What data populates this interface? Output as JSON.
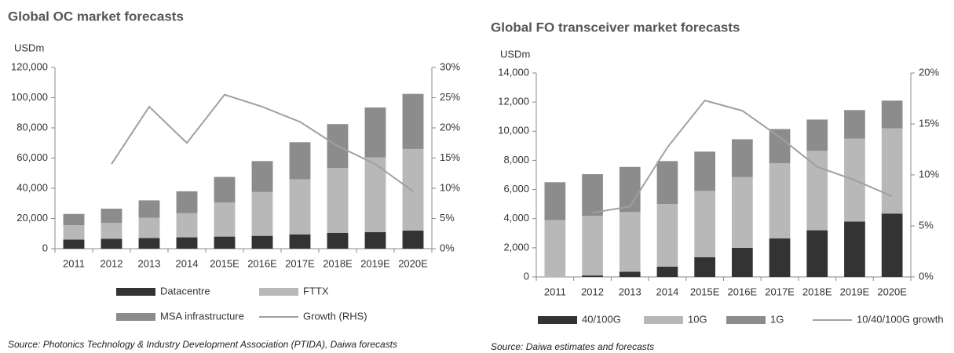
{
  "chart_data": [
    {
      "type": "bar",
      "stacked": true,
      "title": "Global OC market forecasts",
      "y_label": "USDm",
      "source": "Source: Photonics Technology & Industry Development Association (PTIDA), Daiwa forecasts",
      "categories": [
        "2011",
        "2012",
        "2013",
        "2014",
        "2015E",
        "2016E",
        "2017E",
        "2018E",
        "2019E",
        "2020E"
      ],
      "series": [
        {
          "name": "Datacentre",
          "color": "#333333",
          "values": [
            6000,
            6500,
            7000,
            7500,
            8000,
            8500,
            9500,
            10500,
            11000,
            12000
          ]
        },
        {
          "name": "FTTX",
          "color": "#b8b8b8",
          "values": [
            9500,
            10500,
            13500,
            16000,
            22500,
            29000,
            36500,
            43000,
            49500,
            54000
          ]
        },
        {
          "name": "MSA infrastructure",
          "color": "#8c8c8c",
          "values": [
            7500,
            9500,
            11500,
            14500,
            17000,
            20500,
            24500,
            29000,
            33000,
            36500
          ]
        },
        {
          "name": "Growth (RHS)",
          "type": "line",
          "axis": "y2",
          "color": "#a0a0a0",
          "values": [
            null,
            14,
            23.5,
            17.5,
            25.5,
            23.5,
            21,
            17,
            14,
            9.5
          ]
        }
      ],
      "ylim": [
        0,
        120000
      ],
      "yticks": [
        0,
        {
          "value": 20000,
          "label": "20,000"
        },
        {
          "value": 40000,
          "label": "40,000"
        },
        {
          "value": 60000,
          "label": "60,000"
        },
        {
          "value": 80000,
          "label": "80,000"
        },
        {
          "value": 100000,
          "label": "100,000"
        },
        {
          "value": 120000,
          "label": "120,000"
        }
      ],
      "y2lim": [
        0,
        30
      ],
      "y2ticks": [
        {
          "value": 0,
          "label": "0%"
        },
        {
          "value": 5,
          "label": "5%"
        },
        {
          "value": 10,
          "label": "10%"
        },
        {
          "value": 15,
          "label": "15%"
        },
        {
          "value": 20,
          "label": "20%"
        },
        {
          "value": 25,
          "label": "25%"
        },
        {
          "value": 30,
          "label": "30%"
        }
      ],
      "grid": false
    },
    {
      "type": "bar",
      "stacked": true,
      "title": "Global FO transceiver market forecasts",
      "y_label": "USDm",
      "source": "Source: Daiwa estimates and forecasts",
      "categories": [
        "2011",
        "2012",
        "2013",
        "2014",
        "2015E",
        "2016E",
        "2017E",
        "2018E",
        "2019E",
        "2020E"
      ],
      "series": [
        {
          "name": "40/100G",
          "color": "#333333",
          "values": [
            0,
            100,
            350,
            700,
            1350,
            2000,
            2650,
            3200,
            3800,
            4350
          ]
        },
        {
          "name": "10G",
          "color": "#b8b8b8",
          "values": [
            3900,
            4100,
            4100,
            4300,
            4550,
            4850,
            5150,
            5450,
            5700,
            5850
          ]
        },
        {
          "name": "1G",
          "color": "#8c8c8c",
          "values": [
            2600,
            2850,
            3100,
            2950,
            2700,
            2600,
            2350,
            2150,
            1950,
            1900
          ]
        },
        {
          "name": "10/40/100G growth",
          "type": "line",
          "axis": "y2",
          "color": "#a0a0a0",
          "values": [
            null,
            6.3,
            6.9,
            12.7,
            17.3,
            16.3,
            13.7,
            10.8,
            9.5,
            7.9
          ]
        }
      ],
      "ylim": [
        0,
        14000
      ],
      "yticks": [
        0,
        {
          "value": 2000,
          "label": "2,000"
        },
        {
          "value": 4000,
          "label": "4,000"
        },
        {
          "value": 6000,
          "label": "6,000"
        },
        {
          "value": 8000,
          "label": "8,000"
        },
        {
          "value": 10000,
          "label": "10,000"
        },
        {
          "value": 12000,
          "label": "12,000"
        },
        {
          "value": 14000,
          "label": "14,000"
        }
      ],
      "y2lim": [
        0,
        20
      ],
      "y2ticks": [
        {
          "value": 0,
          "label": "0%"
        },
        {
          "value": 5,
          "label": "5%"
        },
        {
          "value": 10,
          "label": "10%"
        },
        {
          "value": 15,
          "label": "15%"
        },
        {
          "value": 20,
          "label": "20%"
        }
      ],
      "grid": false
    }
  ]
}
